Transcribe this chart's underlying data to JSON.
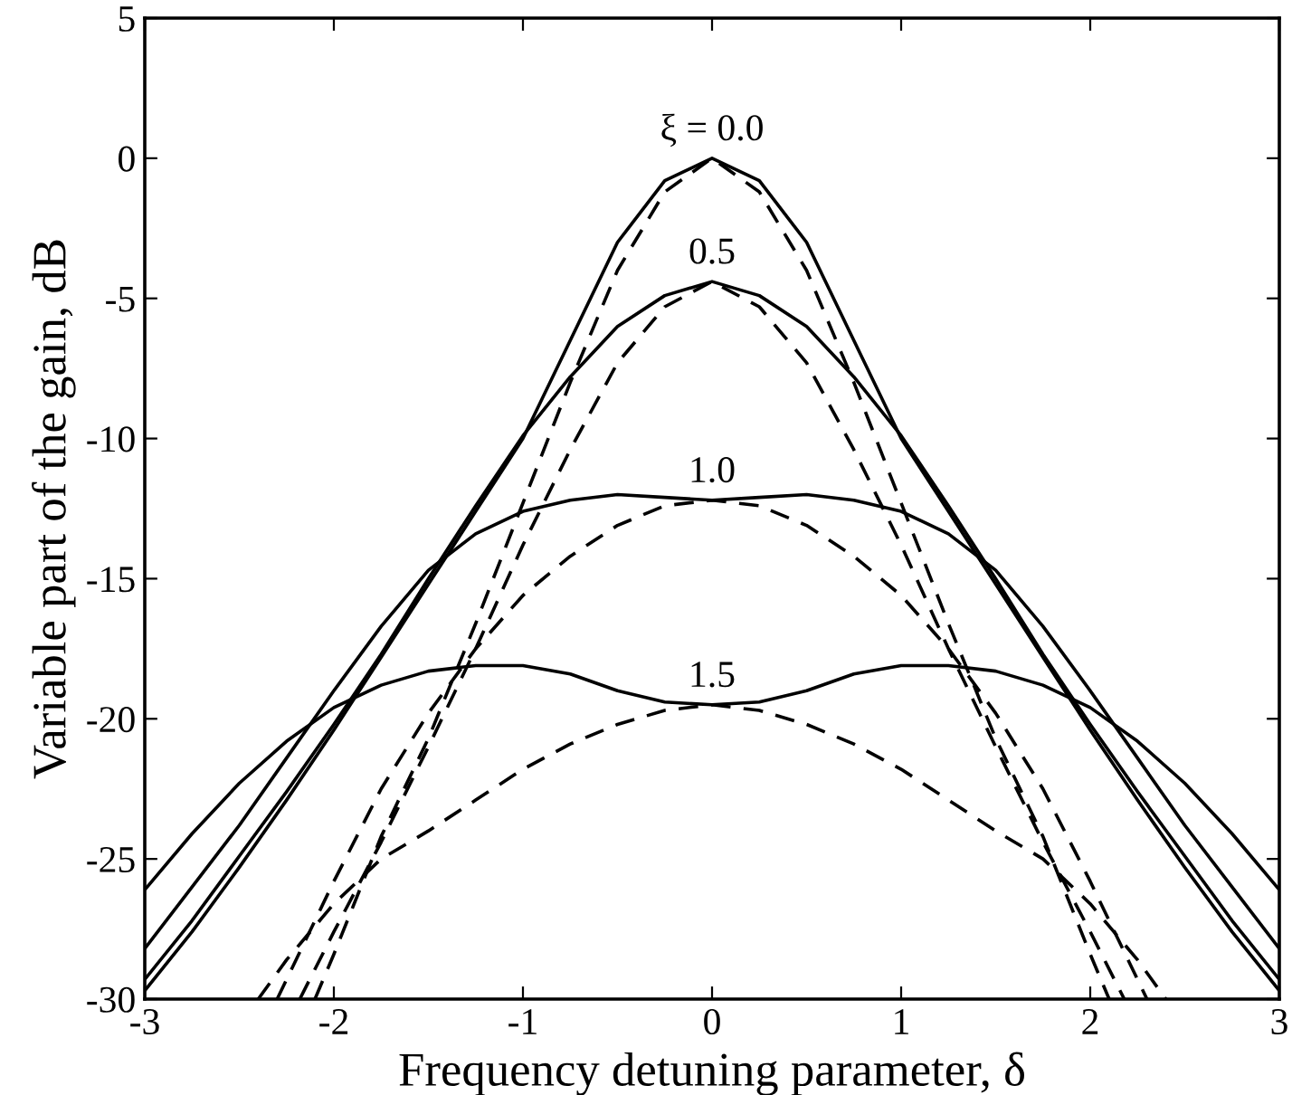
{
  "chart_data": {
    "type": "line",
    "xlabel": "Frequency detuning parameter, δ",
    "ylabel": "Variable part of the gain, dB",
    "xlim": [
      -3,
      3
    ],
    "ylim": [
      -30,
      5
    ],
    "xticks": [
      -3,
      -2,
      -1,
      0,
      1,
      2,
      3
    ],
    "yticks": [
      -30,
      -25,
      -20,
      -15,
      -10,
      -5,
      0,
      5
    ],
    "grid": false,
    "marker": "none",
    "series": [
      {
        "color": "#000000",
        "line_style": "solid",
        "x": [
          -3,
          -2.75,
          -2.5,
          -2.25,
          -2,
          -1.75,
          -1.5,
          -1.25,
          -1,
          -0.75,
          -0.5,
          -0.25,
          0,
          0.25,
          0.5,
          0.75,
          1,
          1.25,
          1.5,
          1.75,
          2,
          2.25,
          2.5,
          2.75,
          3
        ],
        "values": [
          -29.7,
          -27.6,
          -25.3,
          -22.9,
          -20.4,
          -17.8,
          -15.2,
          -12.6,
          -10,
          -6.5,
          -3.0,
          -0.8,
          0,
          -0.8,
          -3.0,
          -6.5,
          -10,
          -12.6,
          -15.2,
          -17.8,
          -20.4,
          -22.9,
          -25.3,
          -27.6,
          -29.7
        ]
      },
      {
        "color": "#000000",
        "line_style": "solid",
        "x": [
          -3,
          -2.75,
          -2.5,
          -2.25,
          -2,
          -1.75,
          -1.5,
          -1.25,
          -1,
          -0.75,
          -0.5,
          -0.25,
          0,
          0.25,
          0.5,
          0.75,
          1,
          1.25,
          1.5,
          1.75,
          2,
          2.25,
          2.5,
          2.75,
          3
        ],
        "values": [
          -29.3,
          -27.2,
          -24.9,
          -22.6,
          -20.2,
          -17.7,
          -15.0,
          -12.4,
          -9.9,
          -7.8,
          -6.0,
          -4.9,
          -4.4,
          -4.9,
          -6.0,
          -7.8,
          -9.9,
          -12.4,
          -15.0,
          -17.7,
          -20.2,
          -22.6,
          -24.9,
          -27.2,
          -29.3
        ]
      },
      {
        "color": "#000000",
        "line_style": "solid",
        "x": [
          -3,
          -2.75,
          -2.5,
          -2.25,
          -2,
          -1.75,
          -1.5,
          -1.25,
          -1,
          -0.75,
          -0.5,
          -0.25,
          0,
          0.25,
          0.5,
          0.75,
          1,
          1.25,
          1.5,
          1.75,
          2,
          2.25,
          2.5,
          2.75,
          3
        ],
        "values": [
          -28.2,
          -26.0,
          -23.8,
          -21.4,
          -19.0,
          -16.7,
          -14.7,
          -13.4,
          -12.6,
          -12.2,
          -12.0,
          -12.1,
          -12.2,
          -12.1,
          -12.0,
          -12.2,
          -12.6,
          -13.4,
          -14.7,
          -16.7,
          -19.0,
          -21.4,
          -23.8,
          -26.0,
          -28.2
        ]
      },
      {
        "color": "#000000",
        "line_style": "solid",
        "x": [
          -3,
          -2.75,
          -2.5,
          -2.25,
          -2,
          -1.75,
          -1.5,
          -1.25,
          -1,
          -0.75,
          -0.5,
          -0.25,
          0,
          0.25,
          0.5,
          0.75,
          1,
          1.25,
          1.5,
          1.75,
          2,
          2.25,
          2.5,
          2.75,
          3
        ],
        "values": [
          -26.1,
          -24.1,
          -22.3,
          -20.8,
          -19.6,
          -18.8,
          -18.3,
          -18.1,
          -18.1,
          -18.4,
          -19.0,
          -19.4,
          -19.5,
          -19.4,
          -19.0,
          -18.4,
          -18.1,
          -18.1,
          -18.3,
          -18.8,
          -19.6,
          -20.8,
          -22.3,
          -24.1,
          -26.1
        ]
      },
      {
        "color": "#000000",
        "line_style": "dashed",
        "x": [
          -2.1,
          -2,
          -1.75,
          -1.5,
          -1.25,
          -1,
          -0.75,
          -0.5,
          -0.25,
          0,
          0.25,
          0.5,
          0.75,
          1,
          1.25,
          1.5,
          1.75,
          2,
          2.1
        ],
        "values": [
          -30,
          -28.4,
          -24.2,
          -20.7,
          -16.6,
          -12.3,
          -8.0,
          -4.0,
          -1.2,
          0,
          -1.2,
          -4.0,
          -8.0,
          -12.3,
          -16.6,
          -20.7,
          -24.2,
          -28.4,
          -30
        ]
      },
      {
        "color": "#000000",
        "line_style": "dashed",
        "x": [
          -2.18,
          -2,
          -1.75,
          -1.5,
          -1.25,
          -1,
          -0.75,
          -0.5,
          -0.25,
          0,
          0.25,
          0.5,
          0.75,
          1,
          1.25,
          1.5,
          1.75,
          2,
          2.18
        ],
        "values": [
          -30,
          -27.6,
          -24.4,
          -21.0,
          -17.5,
          -13.8,
          -10.4,
          -7.3,
          -5.3,
          -4.4,
          -5.3,
          -7.3,
          -10.4,
          -13.8,
          -17.5,
          -21.0,
          -24.4,
          -27.6,
          -30
        ]
      },
      {
        "color": "#000000",
        "line_style": "dashed",
        "x": [
          -2.3,
          -2,
          -1.75,
          -1.5,
          -1.25,
          -1,
          -0.75,
          -0.5,
          -0.25,
          0,
          0.25,
          0.5,
          0.75,
          1,
          1.25,
          1.5,
          1.75,
          2,
          2.3
        ],
        "values": [
          -30,
          -25.8,
          -22.5,
          -19.8,
          -17.5,
          -15.6,
          -14.2,
          -13.1,
          -12.4,
          -12.2,
          -12.4,
          -13.1,
          -14.2,
          -15.6,
          -17.5,
          -19.8,
          -22.5,
          -25.8,
          -30
        ]
      },
      {
        "color": "#000000",
        "line_style": "dashed",
        "x": [
          -2.4,
          -2.25,
          -2,
          -1.75,
          -1.5,
          -1.25,
          -1,
          -0.75,
          -0.5,
          -0.25,
          0,
          0.25,
          0.5,
          0.75,
          1,
          1.25,
          1.5,
          1.75,
          2,
          2.25,
          2.4
        ],
        "values": [
          -30,
          -28.6,
          -26.6,
          -25.0,
          -24.0,
          -22.9,
          -21.8,
          -20.9,
          -20.2,
          -19.7,
          -19.5,
          -19.7,
          -20.2,
          -20.9,
          -21.8,
          -22.9,
          -24.0,
          -25.0,
          -26.6,
          -28.6,
          -30
        ]
      }
    ],
    "annotations": [
      "ξ = 0.0",
      "0.5",
      "1.0",
      "1.5"
    ]
  }
}
